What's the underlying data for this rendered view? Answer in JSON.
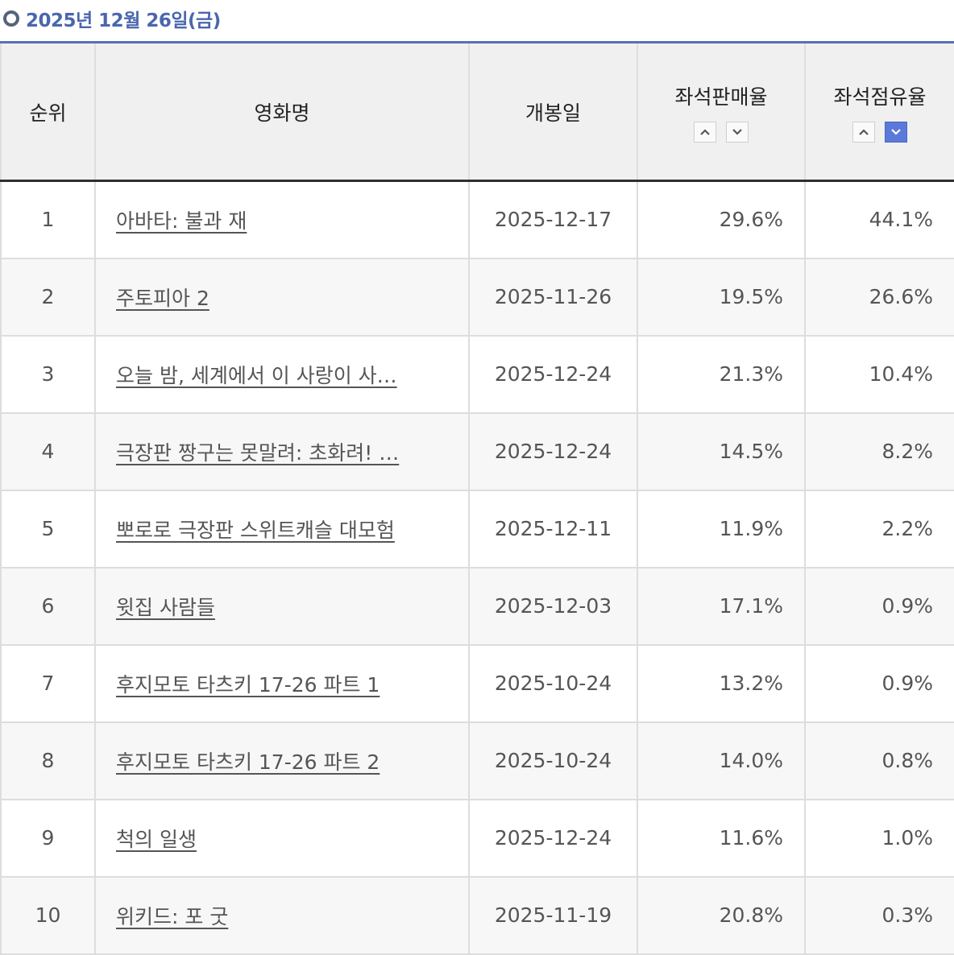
{
  "heading": {
    "date": "2025년 12월 26일(금)"
  },
  "columns": {
    "rank": "순위",
    "title": "영화명",
    "release": "개봉일",
    "sales_rate": "좌석판매율",
    "occupancy_rate": "좌석점유율"
  },
  "sort": {
    "sales_rate": {
      "asc_active": false,
      "desc_active": false
    },
    "occupancy_rate": {
      "asc_active": false,
      "desc_active": true
    },
    "active_color": "#5b79d8"
  },
  "rows": [
    {
      "rank": "1",
      "title": "아바타: 불과 재",
      "release": "2025-12-17",
      "sales": "29.6%",
      "occupancy": "44.1%"
    },
    {
      "rank": "2",
      "title": "주토피아 2",
      "release": "2025-11-26",
      "sales": "19.5%",
      "occupancy": "26.6%"
    },
    {
      "rank": "3",
      "title": "오늘 밤, 세계에서 이 사랑이 사…",
      "release": "2025-12-24",
      "sales": "21.3%",
      "occupancy": "10.4%"
    },
    {
      "rank": "4",
      "title": "극장판 짱구는 못말려: 초화려! …",
      "release": "2025-12-24",
      "sales": "14.5%",
      "occupancy": "8.2%"
    },
    {
      "rank": "5",
      "title": "뽀로로 극장판 스위트캐슬 대모험",
      "release": "2025-12-11",
      "sales": "11.9%",
      "occupancy": "2.2%"
    },
    {
      "rank": "6",
      "title": "윗집 사람들",
      "release": "2025-12-03",
      "sales": "17.1%",
      "occupancy": "0.9%"
    },
    {
      "rank": "7",
      "title": "후지모토 타츠키 17-26 파트 1",
      "release": "2025-10-24",
      "sales": "13.2%",
      "occupancy": "0.9%"
    },
    {
      "rank": "8",
      "title": "후지모토 타츠키 17-26 파트 2",
      "release": "2025-10-24",
      "sales": "14.0%",
      "occupancy": "0.8%"
    },
    {
      "rank": "9",
      "title": "척의 일생",
      "release": "2025-12-24",
      "sales": "11.6%",
      "occupancy": "1.0%"
    },
    {
      "rank": "10",
      "title": "위키드: 포 굿",
      "release": "2025-11-19",
      "sales": "20.8%",
      "occupancy": "0.3%"
    }
  ]
}
